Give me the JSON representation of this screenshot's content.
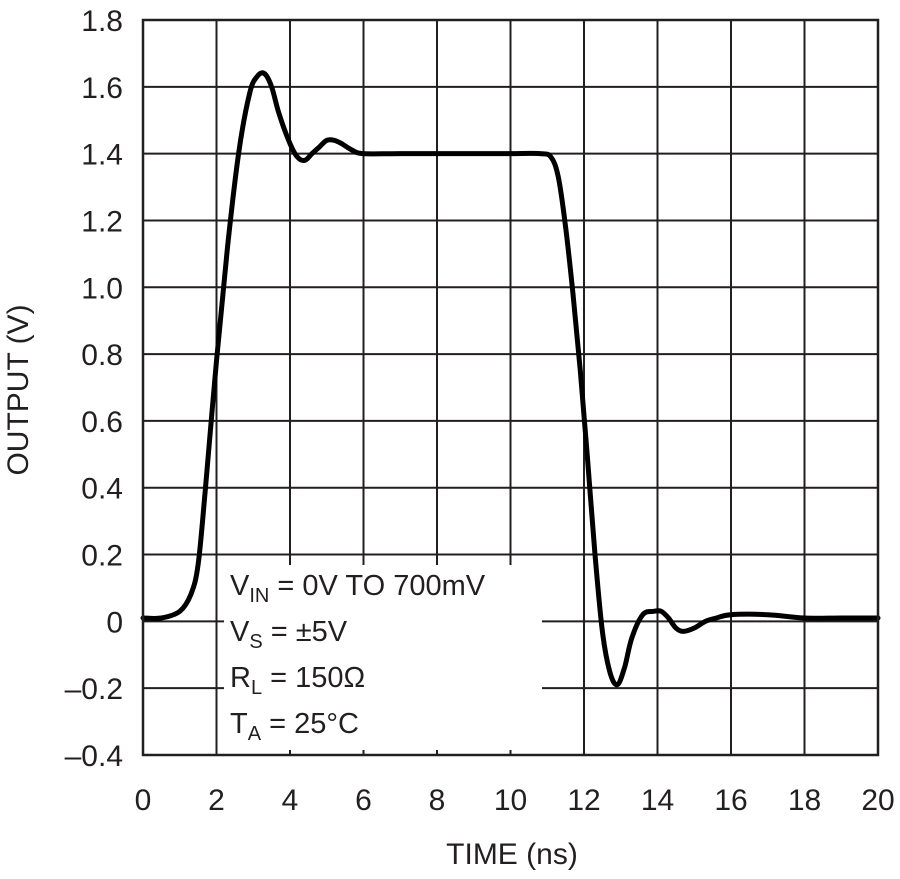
{
  "chart_data": {
    "type": "line",
    "title": "",
    "xlabel": "TIME (ns)",
    "ylabel": "OUTPUT (V)",
    "xlim": [
      0,
      20
    ],
    "ylim": [
      -0.4,
      1.8
    ],
    "x_ticks": [
      0,
      2,
      4,
      6,
      8,
      10,
      12,
      14,
      16,
      18,
      20
    ],
    "y_ticks": [
      -0.4,
      -0.2,
      0,
      0.2,
      0.4,
      0.6,
      0.8,
      1.0,
      1.2,
      1.4,
      1.6,
      1.8
    ],
    "x_tick_labels": [
      "0",
      "2",
      "4",
      "6",
      "8",
      "10",
      "12",
      "14",
      "16",
      "18",
      "20"
    ],
    "y_tick_labels": [
      "–0.4",
      "–0.2",
      "0",
      "0.2",
      "0.4",
      "0.6",
      "0.8",
      "1.0",
      "1.2",
      "1.4",
      "1.6",
      "1.8"
    ],
    "grid": true,
    "legend": "none",
    "line_color": "#000000",
    "grid_color": "#231f20",
    "series": [
      {
        "x": [
          0,
          0.5,
          1.0,
          1.3,
          1.5,
          1.7,
          2.0,
          2.3,
          2.6,
          2.9,
          3.1,
          3.3,
          3.5,
          3.7,
          4.0,
          4.2,
          4.4,
          4.6,
          4.8,
          5.0,
          5.2,
          5.4,
          5.7,
          6.0,
          7.0,
          8.0,
          9.0,
          10.0,
          10.8,
          11.1,
          11.3,
          11.5,
          11.7,
          11.9,
          12.1,
          12.3,
          12.5,
          12.7,
          12.9,
          13.1,
          13.3,
          13.6,
          13.9,
          14.1,
          14.3,
          14.5,
          14.7,
          15.0,
          15.3,
          15.6,
          16.0,
          17.0,
          18.0,
          19.0,
          20.0
        ],
        "y": [
          0.01,
          0.01,
          0.03,
          0.08,
          0.17,
          0.4,
          0.78,
          1.12,
          1.4,
          1.58,
          1.63,
          1.64,
          1.6,
          1.52,
          1.43,
          1.39,
          1.38,
          1.4,
          1.42,
          1.44,
          1.44,
          1.43,
          1.41,
          1.4,
          1.4,
          1.4,
          1.4,
          1.4,
          1.4,
          1.39,
          1.33,
          1.18,
          0.98,
          0.75,
          0.48,
          0.2,
          -0.03,
          -0.15,
          -0.19,
          -0.14,
          -0.05,
          0.02,
          0.03,
          0.03,
          0.01,
          -0.02,
          -0.03,
          -0.02,
          0.0,
          0.01,
          0.02,
          0.02,
          0.01,
          0.01,
          0.01
        ]
      }
    ],
    "annotation": {
      "lines": [
        {
          "main": "V",
          "sub": "IN",
          "rest": " = 0V TO 700mV"
        },
        {
          "main": "V",
          "sub": "S",
          "rest": " = ±5V"
        },
        {
          "main": "R",
          "sub": "L",
          "rest": " = 150Ω"
        },
        {
          "main": "T",
          "sub": "A",
          "rest": " = 25°C"
        }
      ]
    }
  }
}
